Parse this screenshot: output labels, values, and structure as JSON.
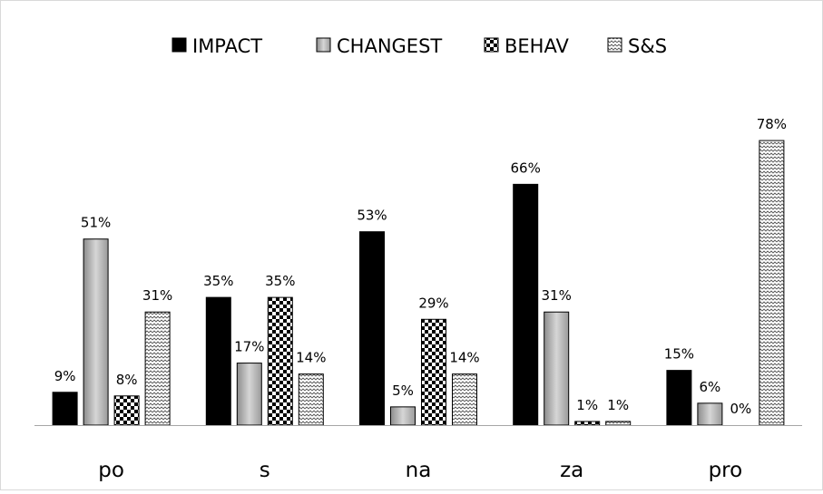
{
  "chart_data": {
    "type": "bar",
    "title": "",
    "xlabel": "",
    "ylabel": "",
    "ylim": [
      0,
      100
    ],
    "grid": false,
    "legend_position": "top",
    "categories": [
      "po",
      "s",
      "na",
      "za",
      "pro"
    ],
    "series": [
      {
        "name": "IMPACT",
        "values": [
          9,
          35,
          53,
          66,
          15
        ],
        "labels": [
          "9%",
          "35%",
          "53%",
          "66%",
          "15%"
        ],
        "pattern": "solid-black"
      },
      {
        "name": "CHANGEST",
        "values": [
          51,
          17,
          5,
          31,
          6
        ],
        "labels": [
          "51%",
          "17%",
          "5%",
          "31%",
          "6%"
        ],
        "pattern": "gray-gradient"
      },
      {
        "name": "BEHAV",
        "values": [
          8,
          35,
          29,
          1,
          0
        ],
        "labels": [
          "8%",
          "35%",
          "29%",
          "1%",
          "0%"
        ],
        "pattern": "checker"
      },
      {
        "name": "S&S",
        "values": [
          31,
          14,
          14,
          1,
          78
        ],
        "labels": [
          "31%",
          "14%",
          "14%",
          "1%",
          "78%"
        ],
        "pattern": "zigzag"
      }
    ]
  }
}
